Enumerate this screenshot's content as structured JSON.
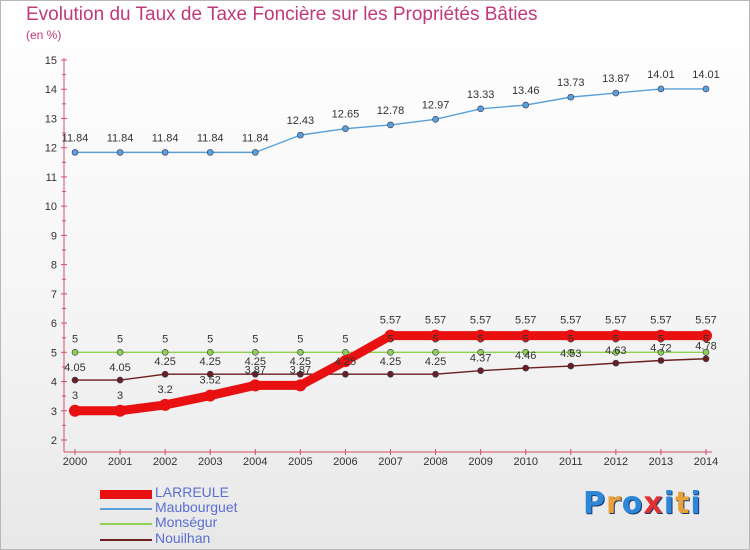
{
  "header": {
    "title": "Evolution du Taux de Taxe Foncière sur les Propriétés Bâties",
    "unit": "(en %)"
  },
  "logo": {
    "text": "Proxiti",
    "letters": [
      "P",
      "r",
      "o",
      "x",
      "i",
      "t",
      "i"
    ],
    "colors": [
      "#2e86d6",
      "#e8a13a",
      "#2e86d6",
      "#e03030",
      "#2e86d6",
      "#e8a13a",
      "#2e86d6"
    ]
  },
  "chart_data": {
    "type": "line",
    "title": "Evolution du Taux de Taxe Foncière sur les Propriétés Bâties",
    "ylabel": "(en %)",
    "xlabel": "",
    "ylim": [
      2,
      15
    ],
    "yticks": [
      2,
      3,
      4,
      5,
      6,
      7,
      8,
      9,
      10,
      11,
      12,
      13,
      14,
      15
    ],
    "categories": [
      "2000",
      "2001",
      "2002",
      "2003",
      "2004",
      "2005",
      "2006",
      "2007",
      "2008",
      "2009",
      "2010",
      "2011",
      "2012",
      "2013",
      "2014"
    ],
    "grid": false,
    "legend_position": "bottom-left",
    "series": [
      {
        "name": "LARREULE",
        "color": "#e81010",
        "values": [
          3,
          3,
          3.2,
          3.52,
          3.87,
          3.87,
          4.7,
          5.57,
          5.57,
          5.57,
          5.57,
          5.57,
          5.57,
          5.57,
          5.57
        ],
        "labels": [
          "3",
          "3",
          "3.2",
          "3.52",
          "3.87",
          "3.87",
          "",
          "5.57",
          "5.57",
          "5.57",
          "5.57",
          "5.57",
          "5.57",
          "5.57",
          "5.57"
        ]
      },
      {
        "name": "Maubourguet",
        "color": "#5aa0d8",
        "values": [
          11.84,
          11.84,
          11.84,
          11.84,
          11.84,
          12.43,
          12.65,
          12.78,
          12.97,
          13.33,
          13.46,
          13.73,
          13.87,
          14.01,
          14.01
        ],
        "labels": [
          "11.84",
          "11.84",
          "11.84",
          "11.84",
          "11.84",
          "12.43",
          "12.65",
          "12.78",
          "12.97",
          "13.33",
          "13.46",
          "13.73",
          "13.87",
          "14.01",
          "14.01"
        ]
      },
      {
        "name": "Monségur",
        "color": "#90d050",
        "values": [
          5,
          5,
          5,
          5,
          5,
          5,
          5,
          5,
          5,
          5,
          5,
          5,
          5,
          5,
          5
        ],
        "labels": [
          "5",
          "5",
          "5",
          "5",
          "5",
          "5",
          "5",
          "5",
          "5",
          "5",
          "5",
          "5",
          "5",
          "5",
          "5"
        ]
      },
      {
        "name": "Nouilhan",
        "color": "#6b1f1f",
        "values": [
          4.05,
          4.05,
          4.25,
          4.25,
          4.25,
          4.25,
          4.25,
          4.25,
          4.25,
          4.37,
          4.46,
          4.53,
          4.63,
          4.72,
          4.78
        ],
        "labels": [
          "4.05",
          "4.05",
          "4.25",
          "4.25",
          "4.25",
          "4.25",
          "4.25",
          "4.25",
          "4.25",
          "4.37",
          "4.46",
          "4.53",
          "4.63",
          "4.72",
          "4.78"
        ]
      }
    ]
  }
}
